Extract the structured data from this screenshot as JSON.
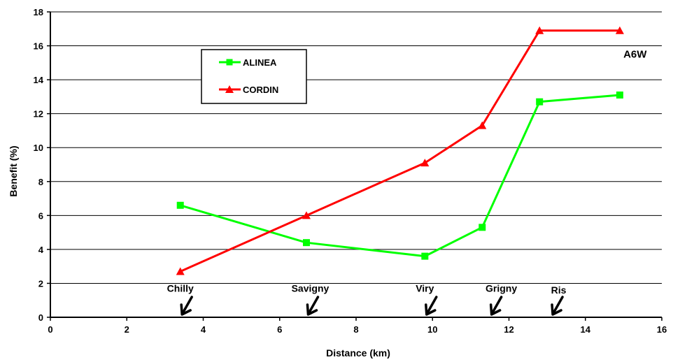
{
  "chart_data": {
    "type": "line",
    "xlabel": "Distance (km)",
    "ylabel": "Benefit (%)",
    "xlim": [
      0,
      16
    ],
    "ylim": [
      0,
      18
    ],
    "x_ticks": [
      0,
      2,
      4,
      6,
      8,
      10,
      12,
      14,
      16
    ],
    "y_ticks": [
      0,
      2,
      4,
      6,
      8,
      10,
      12,
      14,
      16,
      18
    ],
    "grid": "horizontal",
    "legend_placement": "upper-left",
    "series": [
      {
        "name": "ALINEA",
        "color": "#00ff00",
        "marker": "square",
        "points": [
          [
            3.4,
            6.6
          ],
          [
            6.7,
            4.4
          ],
          [
            9.8,
            3.6
          ],
          [
            11.3,
            5.3
          ],
          [
            12.8,
            12.7
          ],
          [
            14.9,
            13.1
          ]
        ]
      },
      {
        "name": "CORDIN",
        "color": "#ff0000",
        "marker": "triangle",
        "points": [
          [
            3.4,
            2.7
          ],
          [
            6.7,
            6.0
          ],
          [
            9.8,
            9.1
          ],
          [
            11.3,
            11.3
          ],
          [
            12.8,
            16.9
          ],
          [
            14.9,
            16.9
          ]
        ]
      }
    ],
    "annotations": [
      {
        "text": "A6W",
        "x": 15.3,
        "y": 15.3
      },
      {
        "text": "Chilly",
        "x": 3.4,
        "y": 1.5
      },
      {
        "text": "Savigny",
        "x": 6.8,
        "y": 1.5
      },
      {
        "text": "Viry",
        "x": 9.8,
        "y": 1.5
      },
      {
        "text": "Grigny",
        "x": 11.8,
        "y": 1.5
      },
      {
        "text": "Ris",
        "x": 13.3,
        "y": 1.4
      }
    ],
    "station_arrows": [
      3.5,
      6.8,
      9.9,
      11.6,
      13.2
    ]
  }
}
